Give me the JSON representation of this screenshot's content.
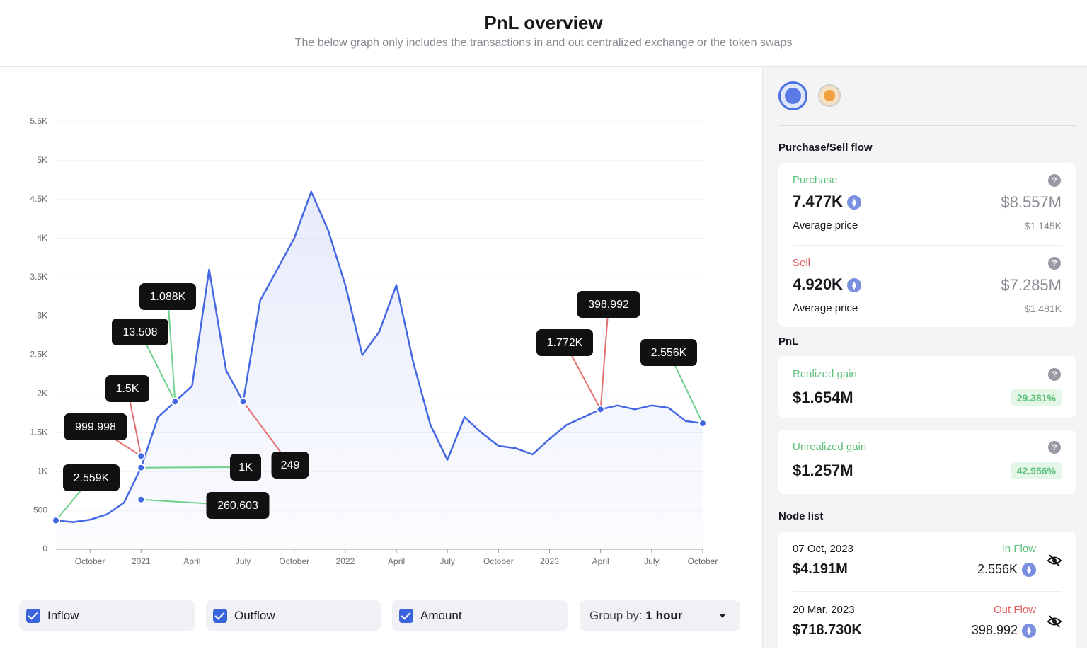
{
  "header": {
    "title": "PnL overview",
    "subtitle": "The below graph only includes the transactions in and out centralized exchange or the token swaps"
  },
  "chart_data": {
    "type": "line",
    "color": "#4468e2",
    "grid": true,
    "x": [
      "2020-08",
      "2020-09",
      "2020-10",
      "2020-11",
      "2020-12",
      "2021-01",
      "2021-02",
      "2021-03",
      "2021-04",
      "2021-05",
      "2021-06",
      "2021-07",
      "2021-08",
      "2021-09",
      "2021-10",
      "2021-11",
      "2021-12",
      "2022-01",
      "2022-02",
      "2022-03",
      "2022-04",
      "2022-05",
      "2022-06",
      "2022-07",
      "2022-08",
      "2022-09",
      "2022-10",
      "2022-11",
      "2022-12",
      "2023-01",
      "2023-02",
      "2023-03",
      "2023-04",
      "2023-05",
      "2023-06",
      "2023-07",
      "2023-08",
      "2023-09",
      "2023-10"
    ],
    "values": [
      370,
      350,
      380,
      450,
      600,
      1050,
      1700,
      1900,
      2100,
      3600,
      2300,
      1900,
      3200,
      3600,
      4000,
      4600,
      4100,
      3400,
      2500,
      2800,
      3400,
      2400,
      1600,
      1150,
      1700,
      1500,
      1330,
      1300,
      1220,
      1420,
      1600,
      1700,
      1800,
      1850,
      1800,
      1850,
      1820,
      1650,
      1620
    ],
    "xlim": [
      "2020-08",
      "2023-10"
    ],
    "xticks": [
      {
        "value": "2020-10",
        "label": "October"
      },
      {
        "value": "2021-01",
        "label": "2021"
      },
      {
        "value": "2021-04",
        "label": "April"
      },
      {
        "value": "2021-07",
        "label": "July"
      },
      {
        "value": "2021-10",
        "label": "October"
      },
      {
        "value": "2022-01",
        "label": "2022"
      },
      {
        "value": "2022-04",
        "label": "April"
      },
      {
        "value": "2022-07",
        "label": "July"
      },
      {
        "value": "2022-10",
        "label": "October"
      },
      {
        "value": "2023-01",
        "label": "2023"
      },
      {
        "value": "2023-04",
        "label": "April"
      },
      {
        "value": "2023-07",
        "label": "July"
      },
      {
        "value": "2023-10",
        "label": "October"
      }
    ],
    "ylim": [
      0,
      5500
    ],
    "yticks": [
      0,
      500,
      {
        "value": 1000,
        "label": "1K"
      },
      {
        "value": 1500,
        "label": "1.5K"
      },
      {
        "value": 2000,
        "label": "2K"
      },
      {
        "value": 2500,
        "label": "2.5K"
      },
      {
        "value": 3000,
        "label": "3K"
      },
      {
        "value": 3500,
        "label": "3.5K"
      },
      {
        "value": 4000,
        "label": "4K"
      },
      {
        "value": 4500,
        "label": "4.5K"
      },
      {
        "value": 5000,
        "label": "5K"
      },
      {
        "value": 5500,
        "label": "5.5K"
      }
    ],
    "annotations": [
      {
        "text": "2.559K",
        "x": "2020-08",
        "y": 370,
        "color": "#6fcf8d"
      },
      {
        "text": "260.603",
        "x": "2021-01",
        "y": 640,
        "color": "#6fcf8d"
      },
      {
        "text": "999.998",
        "x": "2021-01",
        "y": 1200,
        "color": "#e46e6e"
      },
      {
        "text": "1.5K",
        "x": "2021-01",
        "y": 1200,
        "color": "#e46e6e"
      },
      {
        "text": "1K",
        "x": "2021-01",
        "y": 1050,
        "color": "#6fcf8d"
      },
      {
        "text": "13.508",
        "x": "2021-03",
        "y": 1900,
        "color": "#6fcf8d"
      },
      {
        "text": "1.088K",
        "x": "2021-03",
        "y": 1900,
        "color": "#6fcf8d"
      },
      {
        "text": "249",
        "x": "2021-07",
        "y": 1900,
        "color": "#e46e6e"
      },
      {
        "text": "1.772K",
        "x": "2023-04",
        "y": 1800,
        "color": "#e46e6e"
      },
      {
        "text": "398.992",
        "x": "2023-04",
        "y": 1800,
        "color": "#e46e6e"
      },
      {
        "text": "2.556K",
        "x": "2023-10",
        "y": 1620,
        "color": "#6fcf8d"
      }
    ]
  },
  "controls": {
    "inflow": "Inflow",
    "outflow": "Outflow",
    "amount": "Amount",
    "group_by_label": "Group by:",
    "group_by_value": "1 hour"
  },
  "sidebar": {
    "flow_heading": "Purchase/Sell flow",
    "purchase": {
      "label": "Purchase",
      "amount": "7.477K",
      "usd": "$8.557M",
      "avg_label": "Average price",
      "avg": "$1.145K"
    },
    "sell": {
      "label": "Sell",
      "amount": "4.920K",
      "usd": "$7.285M",
      "avg_label": "Average price",
      "avg": "$1.481K"
    },
    "pnl_heading": "PnL",
    "realized": {
      "label": "Realized gain",
      "value": "$1.654M",
      "pct": "29.381%"
    },
    "unrealized": {
      "label": "Unrealized gain",
      "value": "$1.257M",
      "pct": "42.956%"
    },
    "node_heading": "Node list",
    "nodes": [
      {
        "date": "07 Oct, 2023",
        "value": "$4.191M",
        "flow": "In Flow",
        "amount": "2.556K"
      },
      {
        "date": "20 Mar, 2023",
        "value": "$718.730K",
        "flow": "Out Flow",
        "amount": "398.992"
      }
    ]
  }
}
